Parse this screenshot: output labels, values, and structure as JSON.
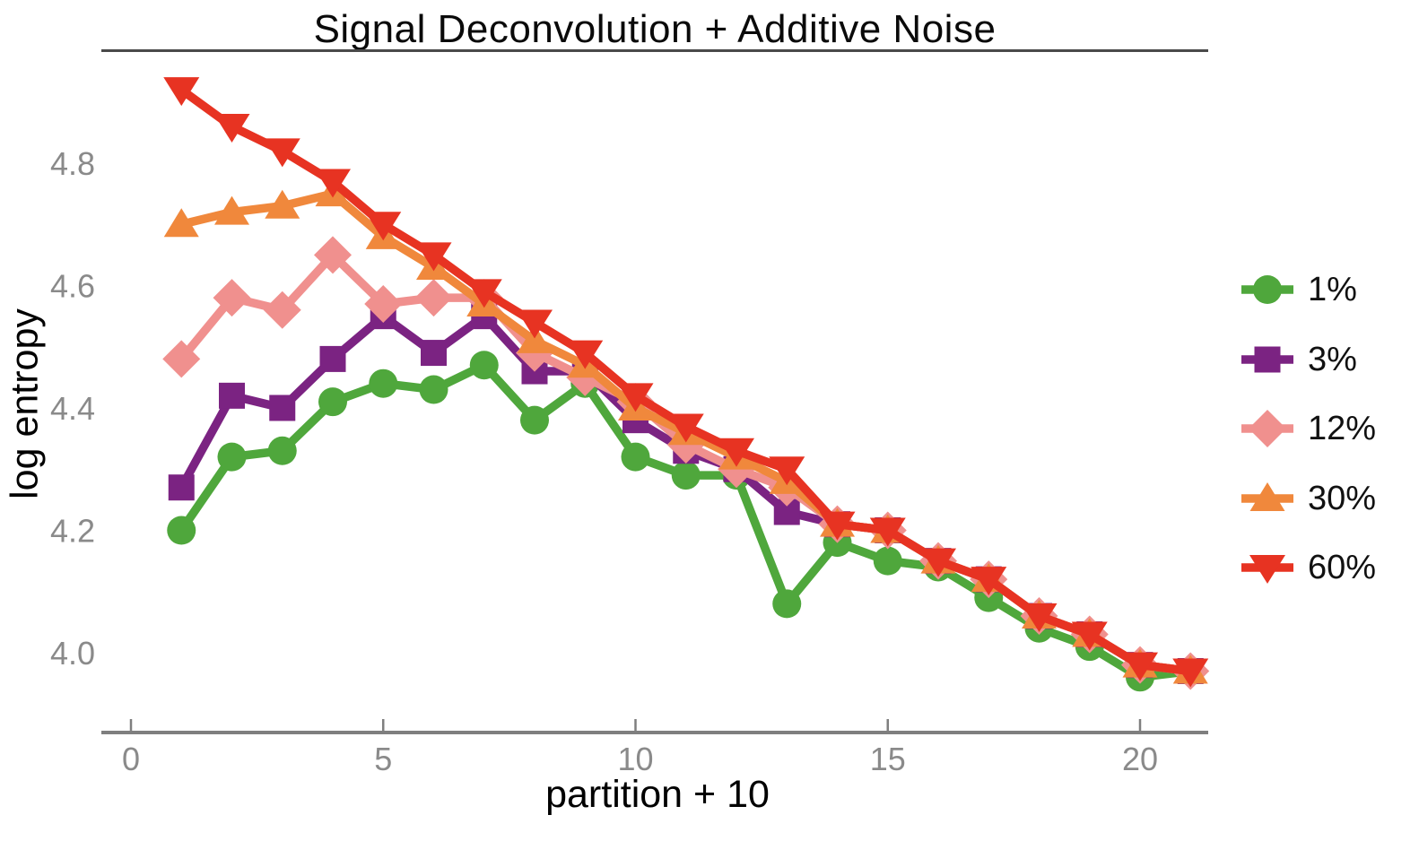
{
  "chart_data": {
    "type": "line",
    "title": "Signal Deconvolution + Additive Noise",
    "xlabel": "partition + 10",
    "ylabel": "log entropy",
    "grid": false,
    "legend_position": "right",
    "x": [
      1,
      2,
      3,
      4,
      5,
      6,
      7,
      8,
      9,
      10,
      11,
      12,
      13,
      14,
      15,
      16,
      17,
      18,
      19,
      20,
      21
    ],
    "series": [
      {
        "name": "1%",
        "marker": "circle",
        "color": "#4FA73C",
        "values": [
          4.2,
          4.32,
          4.33,
          4.41,
          4.44,
          4.43,
          4.47,
          4.38,
          4.44,
          4.32,
          4.29,
          4.29,
          4.08,
          4.18,
          4.15,
          4.14,
          4.09,
          4.04,
          4.01,
          3.96,
          3.97
        ]
      },
      {
        "name": "3%",
        "marker": "square",
        "color": "#7B2382",
        "values": [
          4.27,
          4.42,
          4.4,
          4.48,
          4.55,
          4.49,
          4.55,
          4.46,
          4.46,
          4.38,
          4.33,
          4.3,
          4.23,
          4.21,
          4.2,
          4.15,
          4.12,
          4.06,
          4.03,
          3.98,
          3.97
        ]
      },
      {
        "name": "12%",
        "marker": "diamond",
        "color": "#F0908E",
        "values": [
          4.48,
          4.58,
          4.56,
          4.65,
          4.57,
          4.58,
          4.58,
          4.49,
          4.45,
          4.41,
          4.34,
          4.3,
          4.27,
          4.21,
          4.2,
          4.15,
          4.12,
          4.06,
          4.03,
          3.98,
          3.97
        ]
      },
      {
        "name": "30%",
        "marker": "triangle-up",
        "color": "#F0883C",
        "values": [
          4.7,
          4.72,
          4.73,
          4.75,
          4.68,
          4.63,
          4.57,
          4.51,
          4.47,
          4.4,
          4.36,
          4.32,
          4.28,
          4.21,
          4.2,
          4.15,
          4.12,
          4.06,
          4.03,
          3.98,
          3.97
        ]
      },
      {
        "name": "60%",
        "marker": "triangle-down",
        "color": "#E73322",
        "values": [
          4.92,
          4.86,
          4.82,
          4.77,
          4.7,
          4.65,
          4.59,
          4.54,
          4.49,
          4.42,
          4.37,
          4.33,
          4.3,
          4.21,
          4.2,
          4.15,
          4.12,
          4.06,
          4.03,
          3.98,
          3.97
        ]
      }
    ],
    "x_axis": {
      "ticks": [
        0,
        5,
        10,
        15,
        20
      ],
      "range": [
        -0.59,
        21.35
      ]
    },
    "y_axis": {
      "ticks": [
        4.0,
        4.2,
        4.4,
        4.6,
        4.8
      ],
      "range": [
        3.87,
        4.95
      ]
    }
  },
  "colors": {
    "axis_line": "#7f7f7f",
    "tick_label": "#8a8a8a",
    "text": "#0a0a0a",
    "title_rule": "#4a4a4a",
    "background": "#ffffff"
  }
}
